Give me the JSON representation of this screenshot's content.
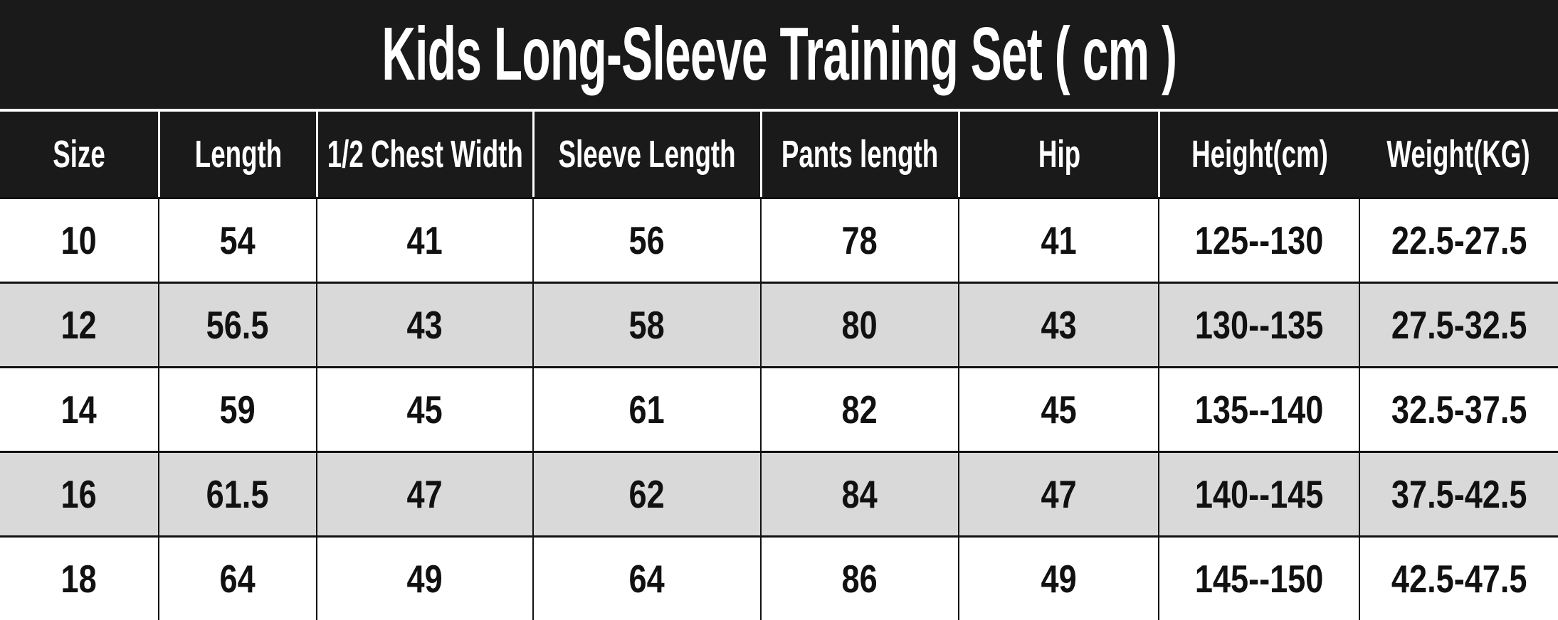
{
  "title": "Kids Long-Sleeve Training Set ( cm )",
  "colors": {
    "bar_background": "#1a1a1a",
    "header_background": "#1a1a1a",
    "header_text": "#ffffff",
    "header_divider": "#ffffff",
    "row_default": "#ffffff",
    "row_alternate": "#d9d9d9",
    "grid_line": "#111111",
    "cell_text": "#111111"
  },
  "table": {
    "columns": [
      "Size",
      "Length",
      "1/2 Chest Width",
      "Sleeve Length",
      "Pants length",
      "Hip",
      "Height(cm)",
      "Weight(KG)"
    ],
    "rows": [
      [
        "10",
        "54",
        "41",
        "56",
        "78",
        "41",
        "125--130",
        "22.5-27.5"
      ],
      [
        "12",
        "56.5",
        "43",
        "58",
        "80",
        "43",
        "130--135",
        "27.5-32.5"
      ],
      [
        "14",
        "59",
        "45",
        "61",
        "82",
        "45",
        "135--140",
        "32.5-37.5"
      ],
      [
        "16",
        "61.5",
        "47",
        "62",
        "84",
        "47",
        "140--145",
        "37.5-42.5"
      ],
      [
        "18",
        "64",
        "49",
        "64",
        "86",
        "49",
        "145--150",
        "42.5-47.5"
      ]
    ]
  },
  "chart_data": {
    "type": "table",
    "title": "Kids Long-Sleeve Training Set ( cm )",
    "unit": "cm",
    "columns": [
      "Size",
      "Length",
      "1/2 Chest Width",
      "Sleeve Length",
      "Pants length",
      "Hip",
      "Height(cm)",
      "Weight(KG)"
    ],
    "rows": [
      [
        "10",
        "54",
        "41",
        "56",
        "78",
        "41",
        "125--130",
        "22.5-27.5"
      ],
      [
        "12",
        "56.5",
        "43",
        "58",
        "80",
        "43",
        "130--135",
        "27.5-32.5"
      ],
      [
        "14",
        "59",
        "45",
        "61",
        "82",
        "45",
        "135--140",
        "32.5-37.5"
      ],
      [
        "16",
        "61.5",
        "47",
        "62",
        "84",
        "47",
        "140--145",
        "37.5-42.5"
      ],
      [
        "18",
        "64",
        "49",
        "64",
        "86",
        "49",
        "145--150",
        "42.5-47.5"
      ]
    ]
  }
}
